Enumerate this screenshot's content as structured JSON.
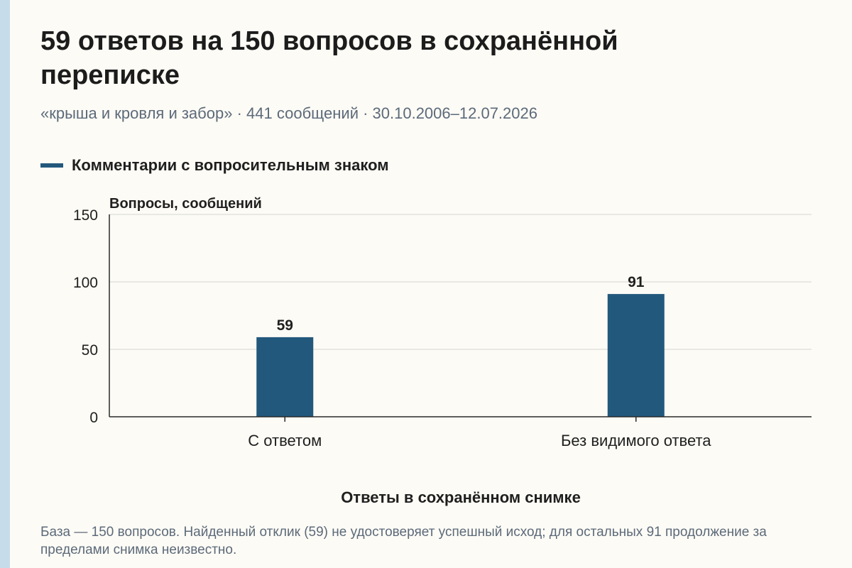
{
  "colors": {
    "bar": "#23587d",
    "grid": "#d4d4d4",
    "axis": "#2a2a2a",
    "left_strip": "#c7dcea",
    "background": "#fdfbf5"
  },
  "title": "59 ответов на 150 вопросов в сохранённой переписке",
  "subtitle": "«крыша и кровля и забор» · 441 сообщений · 30.10.2006–12.07.2026",
  "footnote": "База — 150 вопросов. Найденный отклик (59) не удостоверяет успешный исход; для остальных 91 продолжение за пределами снимка неизвестно.",
  "chart_data": {
    "type": "bar",
    "title": "59 ответов на 150 вопросов в сохранённой переписке",
    "subtitle": "«крыша и кровля и забор» · 441 сообщений · 30.10.2006–12.07.2026",
    "categories": [
      "С ответом",
      "Без видимого ответа"
    ],
    "series": [
      {
        "name": "Комментарии с вопросительным знаком",
        "values": [
          59,
          91
        ]
      }
    ],
    "xlabel": "Ответы в сохранённом снимке",
    "ylabel": "Вопросы, сообщений",
    "ylim": [
      0,
      150
    ],
    "yticks": [
      0,
      50,
      100,
      150
    ],
    "grid": true,
    "legend": "top-left",
    "data_labels": true
  }
}
